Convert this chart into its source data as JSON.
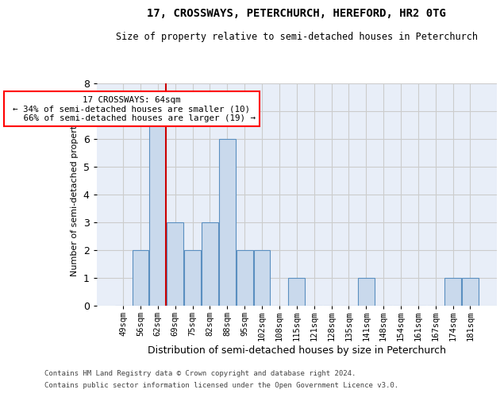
{
  "title1": "17, CROSSWAYS, PETERCHURCH, HEREFORD, HR2 0TG",
  "title2": "Size of property relative to semi-detached houses in Peterchurch",
  "xlabel": "Distribution of semi-detached houses by size in Peterchurch",
  "ylabel": "Number of semi-detached properties",
  "categories": [
    "49sqm",
    "56sqm",
    "62sqm",
    "69sqm",
    "75sqm",
    "82sqm",
    "88sqm",
    "95sqm",
    "102sqm",
    "108sqm",
    "115sqm",
    "121sqm",
    "128sqm",
    "135sqm",
    "141sqm",
    "148sqm",
    "154sqm",
    "161sqm",
    "167sqm",
    "174sqm",
    "181sqm"
  ],
  "values": [
    0,
    2,
    7,
    3,
    2,
    3,
    6,
    2,
    2,
    0,
    1,
    0,
    0,
    0,
    1,
    0,
    0,
    0,
    0,
    1,
    1
  ],
  "bar_color": "#c9d9ec",
  "bar_edge_color": "#5a8fc0",
  "marker_index": 2,
  "marker_color": "#cc0000",
  "marker_label": "17 CROSSWAYS: 64sqm",
  "pct_smaller": "34% of semi-detached houses are smaller (10)",
  "pct_larger": "66% of semi-detached houses are larger (19)",
  "ylim": [
    0,
    8
  ],
  "yticks": [
    0,
    1,
    2,
    3,
    4,
    5,
    6,
    7,
    8
  ],
  "grid_color": "#cccccc",
  "bg_color": "#e8eef8",
  "footnote1": "Contains HM Land Registry data © Crown copyright and database right 2024.",
  "footnote2": "Contains public sector information licensed under the Open Government Licence v3.0."
}
